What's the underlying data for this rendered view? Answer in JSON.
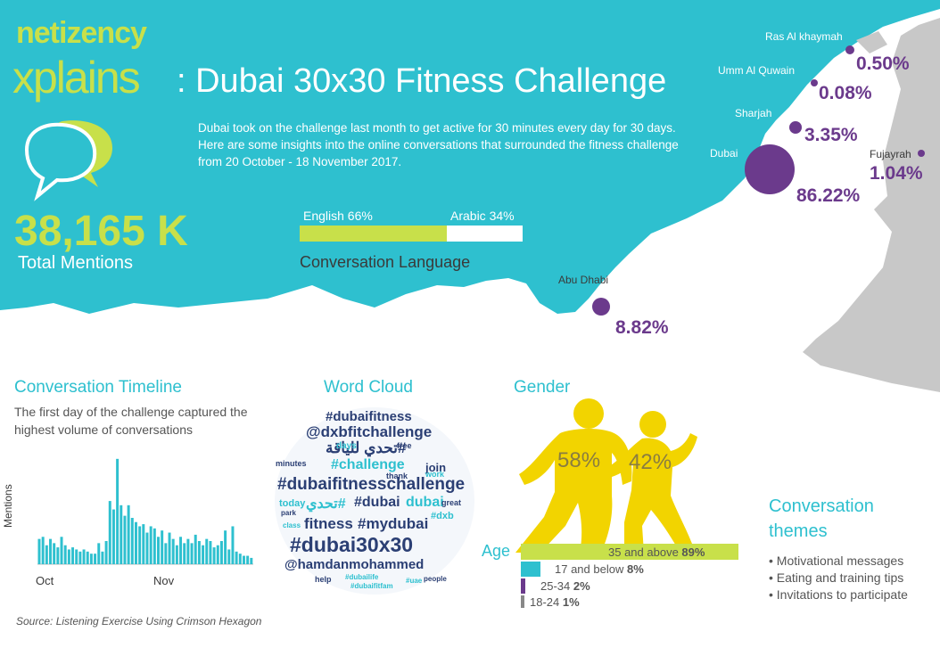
{
  "brand": {
    "name": "netizency",
    "series": "xplains"
  },
  "title": ": Dubai 30x30 Fitness Challenge",
  "intro": "Dubai took on the challenge last month to get active for 30 minutes every day for 30 days. Here are some insights into the online conversations that surrounded the fitness challenge from 20 October - 18 November 2017.",
  "mentions": {
    "value": "38,165 K",
    "label": "Total Mentions"
  },
  "language": {
    "english_label": "English 66%",
    "arabic_label": "Arabic 34%",
    "english_share": 66,
    "arabic_share": 34,
    "title": "Conversation Language"
  },
  "map": {
    "emirates": [
      {
        "name": "Ras Al khaymah",
        "share": "0.50%",
        "value": 0.5
      },
      {
        "name": "Umm Al Quwain",
        "share": "0.08%",
        "value": 0.08
      },
      {
        "name": "Sharjah",
        "share": "3.35%",
        "value": 3.35
      },
      {
        "name": "Dubai",
        "share": "86.22%",
        "value": 86.22
      },
      {
        "name": "Fujayrah",
        "share": "1.04%",
        "value": 1.04
      },
      {
        "name": "Abu Dhabi",
        "share": "8.82%",
        "value": 8.82
      }
    ]
  },
  "timeline": {
    "title": "Conversation Timeline",
    "subtitle": "The first day of the challenge captured the highest volume of conversations",
    "ylabel": "Mentions",
    "month_labels": [
      "Oct",
      "Nov"
    ]
  },
  "chart_data": {
    "type": "bar",
    "ylabel": "Mentions",
    "x_month_labels": [
      "Oct",
      "Nov"
    ],
    "values": [
      1.2,
      1.3,
      0.9,
      1.2,
      1.0,
      0.8,
      1.3,
      0.9,
      0.7,
      0.8,
      0.7,
      0.6,
      0.7,
      0.6,
      0.5,
      0.5,
      1.0,
      0.6,
      1.1,
      3.0,
      2.6,
      5.0,
      2.8,
      2.3,
      2.8,
      2.2,
      2.0,
      1.8,
      1.9,
      1.5,
      1.8,
      1.7,
      1.3,
      1.6,
      1.0,
      1.5,
      1.2,
      0.9,
      1.3,
      1.0,
      1.2,
      1.0,
      1.4,
      1.1,
      0.9,
      1.2,
      1.1,
      0.8,
      0.9,
      1.1,
      1.6,
      0.7,
      1.8,
      0.6,
      0.5,
      0.4,
      0.4,
      0.3
    ],
    "ylim": [
      0,
      5.5
    ]
  },
  "wordcloud": {
    "title": "Word Cloud",
    "words": [
      {
        "text": "#dubaifitness",
        "color": "#2b3f74"
      },
      {
        "text": "@dxbfitchallenge",
        "color": "#2b3f74"
      },
      {
        "text": "تحدي للياقة#",
        "color": "#2b3f74"
      },
      {
        "text": "#challenge",
        "color": "#2ec0cf"
      },
      {
        "text": "join",
        "color": "#2b3f74"
      },
      {
        "text": "#dubaifitnesschallenge",
        "color": "#2b3f74"
      },
      {
        "text": "تحدي#",
        "color": "#2ec0cf"
      },
      {
        "text": "#dubai",
        "color": "#2b3f74"
      },
      {
        "text": "dubai",
        "color": "#2ec0cf"
      },
      {
        "text": "fitness",
        "color": "#2b3f74"
      },
      {
        "text": "#mydubai",
        "color": "#2b3f74"
      },
      {
        "text": "#dubai30x30",
        "color": "#2b3f74"
      },
      {
        "text": "@hamdanmohammed",
        "color": "#2b3f74"
      },
      {
        "text": "today",
        "color": "#2ec0cf"
      },
      {
        "text": "minutes",
        "color": "#2b3f74"
      },
      {
        "text": "days",
        "color": "#2ec0cf"
      },
      {
        "text": "#dxb",
        "color": "#2ec0cf"
      },
      {
        "text": "great",
        "color": "#2b3f74"
      },
      {
        "text": "work",
        "color": "#2ec0cf"
      },
      {
        "text": "thank",
        "color": "#2b3f74"
      },
      {
        "text": "#dubaifitfam",
        "color": "#2ec0cf"
      },
      {
        "text": "help",
        "color": "#2b3f74"
      },
      {
        "text": "#dubailife",
        "color": "#2ec0cf"
      },
      {
        "text": "park",
        "color": "#2b3f74"
      },
      {
        "text": "class",
        "color": "#2ec0cf"
      },
      {
        "text": "free",
        "color": "#2b3f74"
      },
      {
        "text": "people",
        "color": "#2b3f74"
      },
      {
        "text": "#uae",
        "color": "#2ec0cf"
      }
    ]
  },
  "gender": {
    "title": "Gender",
    "male_pct": "58%",
    "female_pct": "42%",
    "male_value": 58,
    "female_value": 42
  },
  "age": {
    "title": "Age",
    "groups": [
      {
        "label": "35 and above",
        "pct": "89%",
        "value": 89,
        "color": "#c8e04a"
      },
      {
        "label": "17 and below",
        "pct": "8%",
        "value": 8,
        "color": "#2ec0cf"
      },
      {
        "label": "25-34",
        "pct": "2%",
        "value": 2,
        "color": "#6b3a8c"
      },
      {
        "label": "18-24",
        "pct": "1%",
        "value": 1,
        "color": "#888888"
      }
    ]
  },
  "themes": {
    "title": "Conversation themes",
    "items": [
      "Motivational messages",
      "Eating and training tips",
      "Invitations to participate"
    ]
  },
  "source": "Source: Listening Exercise Using Crimson Hexagon",
  "colors": {
    "teal": "#2ec0cf",
    "lime": "#c8e04a",
    "purple": "#6b3a8c",
    "grey": "#c8c8c8",
    "yellow": "#f2d400"
  }
}
